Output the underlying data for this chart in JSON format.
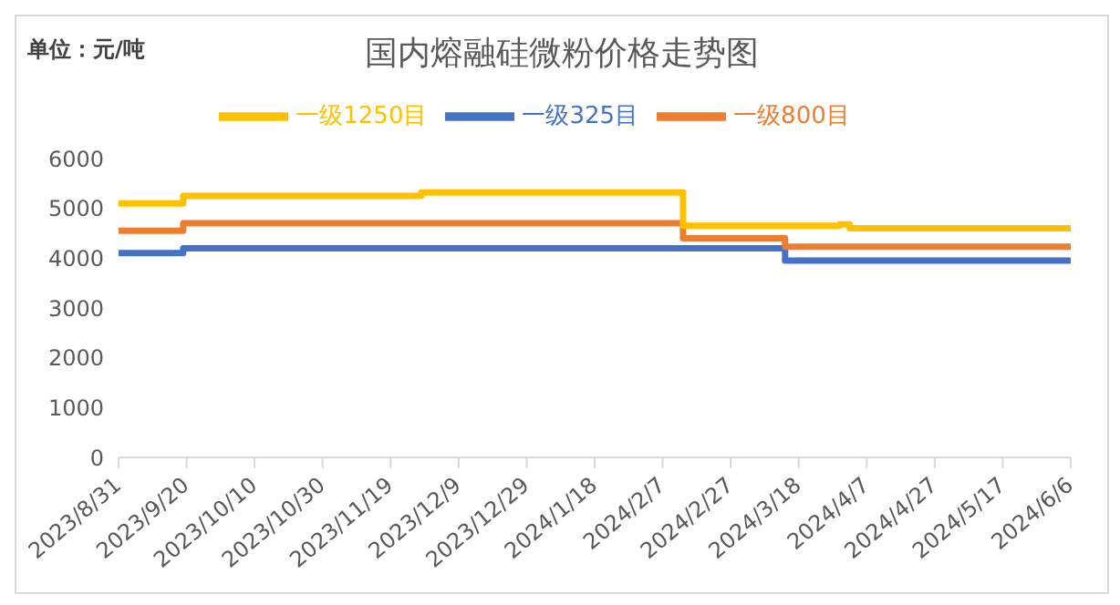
{
  "chart_data": {
    "type": "step",
    "title": "国内熔融硅微粉价格走势图",
    "annotations": [
      "单位：元/吨"
    ],
    "xlim": [
      "2023-08-31",
      "2024-06-06"
    ],
    "xticks": [
      {
        "value": "2023-08-31",
        "label": "2023/8/31"
      },
      {
        "value": "2023-09-20",
        "label": "2023/9/20"
      },
      {
        "value": "2023-10-10",
        "label": "2023/10/10"
      },
      {
        "value": "2023-10-30",
        "label": "2023/10/30"
      },
      {
        "value": "2023-11-19",
        "label": "2023/11/19"
      },
      {
        "value": "2023-12-09",
        "label": "2023/12/9"
      },
      {
        "value": "2023-12-29",
        "label": "2023/12/29"
      },
      {
        "value": "2024-01-18",
        "label": "2024/1/18"
      },
      {
        "value": "2024-02-07",
        "label": "2024/2/7"
      },
      {
        "value": "2024-02-27",
        "label": "2024/2/27"
      },
      {
        "value": "2024-03-18",
        "label": "2024/3/18"
      },
      {
        "value": "2024-04-07",
        "label": "2024/4/7"
      },
      {
        "value": "2024-04-27",
        "label": "2024/4/27"
      },
      {
        "value": "2024-05-17",
        "label": "2024/5/17"
      },
      {
        "value": "2024-06-06",
        "label": "2024/6/6"
      }
    ],
    "ylim": [
      0,
      6000
    ],
    "yticks": [
      0,
      1000,
      2000,
      3000,
      4000,
      5000,
      6000
    ],
    "grid": false,
    "legend": "top",
    "series": [
      {
        "name": "一级325目",
        "color": "#4472c4",
        "x": [
          "2023-08-31",
          "2023-09-19",
          "2024-03-14",
          "2024-06-06"
        ],
        "values": [
          4100,
          4200,
          3950,
          3950
        ]
      },
      {
        "name": "一级800目",
        "color": "#ed7d31",
        "x": [
          "2023-08-31",
          "2023-09-19",
          "2024-02-13",
          "2024-03-14",
          "2024-06-06"
        ],
        "values": [
          4550,
          4700,
          4400,
          4230,
          4230
        ]
      },
      {
        "name": "一级1250目",
        "color": "#ffc000",
        "x": [
          "2023-08-31",
          "2023-09-19",
          "2023-11-28",
          "2024-02-13",
          "2024-03-30",
          "2024-04-02",
          "2024-06-06"
        ],
        "values": [
          5100,
          5250,
          5320,
          4650,
          4680,
          4600,
          4600
        ]
      }
    ]
  }
}
